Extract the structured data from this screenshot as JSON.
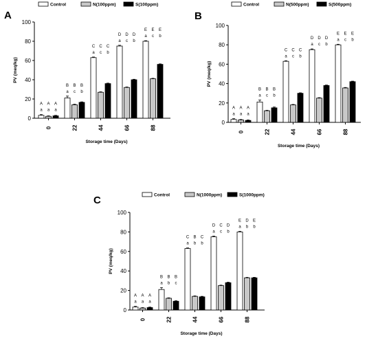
{
  "chart_data": [
    {
      "type": "bar",
      "panel": "A",
      "categories": [
        "0",
        "22",
        "44",
        "66",
        "88"
      ],
      "series": [
        {
          "name": "Control",
          "values": [
            3,
            21,
            63,
            75,
            80
          ],
          "errors": [
            0.8,
            2,
            0.6,
            0.8,
            0.6
          ]
        },
        {
          "name": "N(100ppm)",
          "values": [
            2,
            14,
            27,
            32,
            41
          ],
          "errors": [
            0.5,
            0.6,
            0.5,
            0.5,
            0.5
          ]
        },
        {
          "name": "S(100ppm)",
          "values": [
            2.5,
            16.5,
            36,
            40,
            56
          ],
          "errors": [
            0.5,
            0.5,
            0.5,
            0.5,
            0.5
          ]
        }
      ],
      "upper_letters": [
        [
          "A",
          "A",
          "A"
        ],
        [
          "B",
          "B",
          "B"
        ],
        [
          "C",
          "C",
          "C"
        ],
        [
          "D",
          "D",
          "D"
        ],
        [
          "E",
          "E",
          "E"
        ]
      ],
      "lower_letters": [
        [
          "a",
          "a",
          "a"
        ],
        [
          "a",
          "c",
          "b"
        ],
        [
          "a",
          "c",
          "b"
        ],
        [
          "a",
          "c",
          "b"
        ],
        [
          "a",
          "c",
          "b"
        ]
      ],
      "xlabel": "Storage time (Days)",
      "ylabel": "PV (meq/kg)",
      "ylim": [
        0,
        100
      ],
      "yticks": [
        0,
        20,
        40,
        60,
        80,
        100
      ],
      "legend_position": "top"
    },
    {
      "type": "bar",
      "panel": "B",
      "categories": [
        "0",
        "22",
        "44",
        "66",
        "88"
      ],
      "series": [
        {
          "name": "Control",
          "values": [
            3,
            21,
            63,
            75,
            80
          ],
          "errors": [
            0.8,
            2,
            0.6,
            0.8,
            0.6
          ]
        },
        {
          "name": "N(500ppm)",
          "values": [
            2.5,
            12,
            18,
            25,
            35.5
          ],
          "errors": [
            0.5,
            0.5,
            0.5,
            0.5,
            0.5
          ]
        },
        {
          "name": "S(500ppm)",
          "values": [
            2,
            15,
            30,
            38,
            42
          ],
          "errors": [
            0.5,
            0.8,
            0.5,
            0.5,
            0.5
          ]
        }
      ],
      "upper_letters": [
        [
          "A",
          "A",
          "A"
        ],
        [
          "B",
          "B",
          "B"
        ],
        [
          "C",
          "C",
          "C"
        ],
        [
          "D",
          "D",
          "D"
        ],
        [
          "E",
          "E",
          "E"
        ]
      ],
      "lower_letters": [
        [
          "a",
          "a",
          "a"
        ],
        [
          "a",
          "c",
          "b"
        ],
        [
          "a",
          "c",
          "b"
        ],
        [
          "a",
          "c",
          "b"
        ],
        [
          "a",
          "c",
          "b"
        ]
      ],
      "xlabel": "Storage time (Days)",
      "ylabel": "PV (meq/kg)",
      "ylim": [
        0,
        100
      ],
      "yticks": [
        0,
        20,
        40,
        60,
        80,
        100
      ],
      "legend_position": "top"
    },
    {
      "type": "bar",
      "panel": "C",
      "categories": [
        "0",
        "22",
        "44",
        "66",
        "88"
      ],
      "series": [
        {
          "name": "Control",
          "values": [
            3,
            21,
            63,
            75,
            80
          ],
          "errors": [
            0.8,
            2,
            0.6,
            0.8,
            0.6
          ]
        },
        {
          "name": "N(1000ppm)",
          "values": [
            2,
            12,
            14,
            25,
            33
          ],
          "errors": [
            0.5,
            0.5,
            0.5,
            0.5,
            0.5
          ]
        },
        {
          "name": "S(1000ppm)",
          "values": [
            2.5,
            9,
            13.5,
            28,
            33
          ],
          "errors": [
            0.5,
            0.5,
            0.5,
            0.5,
            0.5
          ]
        }
      ],
      "upper_letters": [
        [
          "A",
          "A",
          "A"
        ],
        [
          "B",
          "B",
          "B"
        ],
        [
          "C",
          "B",
          "C"
        ],
        [
          "D",
          "C",
          "D"
        ],
        [
          "E",
          "D",
          "E"
        ]
      ],
      "lower_letters": [
        [
          "a",
          "a",
          "a"
        ],
        [
          "a",
          "b",
          "c"
        ],
        [
          "a",
          "b",
          "b"
        ],
        [
          "a",
          "c",
          "b"
        ],
        [
          "a",
          "b",
          "b"
        ]
      ],
      "xlabel": "Storage time (Days)",
      "ylabel": "PV (meq/kg)",
      "ylim": [
        0,
        100
      ],
      "yticks": [
        0,
        20,
        40,
        60,
        80,
        100
      ],
      "legend_position": "top"
    }
  ],
  "colors": {
    "control": "#ffffff",
    "nanoemulsion": "#c8c8c8",
    "standard": "#000000",
    "stroke": "#000000"
  }
}
